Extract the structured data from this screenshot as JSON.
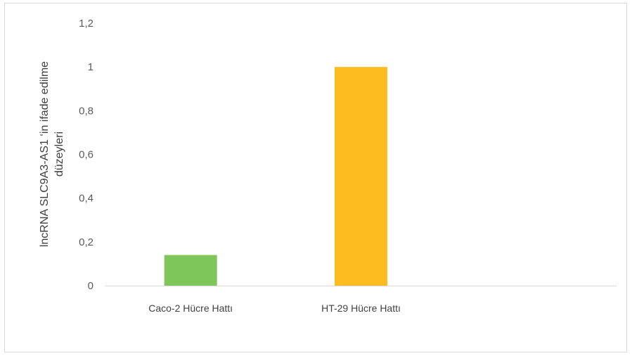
{
  "chart_data": {
    "type": "bar",
    "categories": [
      "Caco-2 Hücre Hattı",
      "HT-29 Hücre Hattı",
      ""
    ],
    "values": [
      0.14,
      1.0,
      null
    ],
    "colors": [
      "#7ec65a",
      "#fdbd21"
    ],
    "ylabel_lines": [
      "lncRNA SLC9A3-AS1 ‘in ifade edilme",
      "düzeyleri"
    ],
    "y_ticks": [
      "0",
      "0,2",
      "0,4",
      "0,6",
      "0,8",
      "1",
      "1,2"
    ],
    "ylim": [
      0,
      1.2
    ],
    "grid": false,
    "legend": "none"
  }
}
